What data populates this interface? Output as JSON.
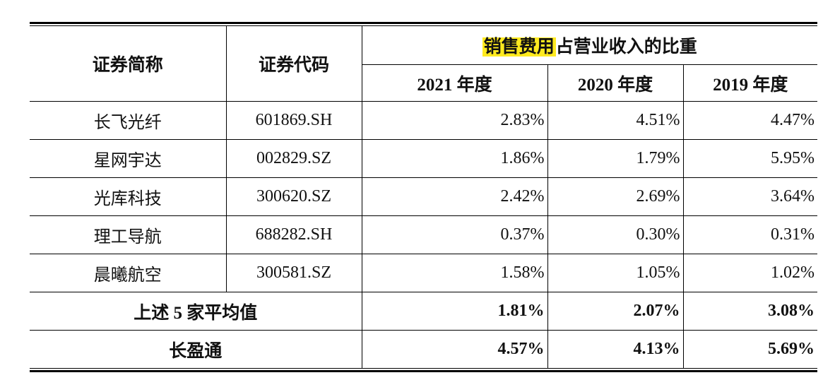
{
  "table": {
    "headers": {
      "name": "证券简称",
      "code": "证券代码",
      "group_highlight": "销售费用",
      "group_rest": "占营业收入的比重",
      "years": [
        "2021 年度",
        "2020 年度",
        "2019 年度"
      ]
    },
    "rows": [
      {
        "name": "长飞光纤",
        "code": "601869.SH",
        "values": [
          "2.83%",
          "4.51%",
          "4.47%"
        ]
      },
      {
        "name": "星网宇达",
        "code": "002829.SZ",
        "values": [
          "1.86%",
          "1.79%",
          "5.95%"
        ]
      },
      {
        "name": "光库科技",
        "code": "300620.SZ",
        "values": [
          "2.42%",
          "2.69%",
          "3.64%"
        ]
      },
      {
        "name": "理工导航",
        "code": "688282.SH",
        "values": [
          "0.37%",
          "0.30%",
          "0.31%"
        ]
      },
      {
        "name": "晨曦航空",
        "code": "300581.SZ",
        "values": [
          "1.58%",
          "1.05%",
          "1.02%"
        ]
      }
    ],
    "average": {
      "label": "上述 5 家平均值",
      "values": [
        "1.81%",
        "2.07%",
        "3.08%"
      ]
    },
    "company": {
      "label": "长盈通",
      "values": [
        "4.57%",
        "4.13%",
        "5.69%"
      ]
    }
  }
}
